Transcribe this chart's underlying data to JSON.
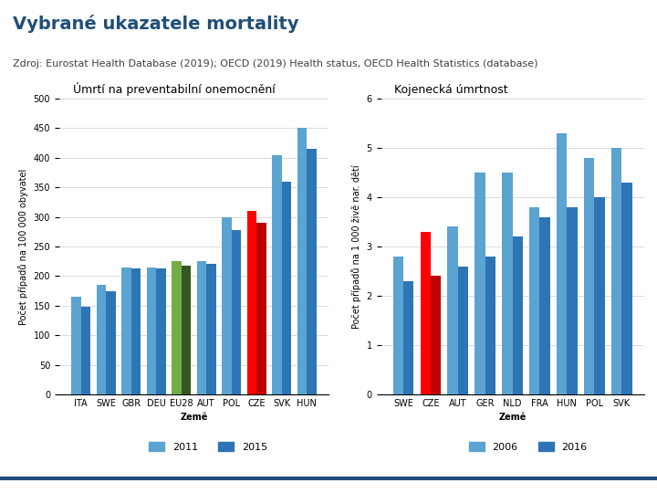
{
  "title": "Vybrané ukazatele mortality",
  "subtitle": "Zdroj: Eurostat Health Database (2019); OECD (2019) Health status, OECD Health Statistics (database)",
  "chart1": {
    "title": "Úmrtí na preventabilní onemocnění",
    "ylabel": "Počet případů na 100 000 obyvatel",
    "xlabel": "Země",
    "categories": [
      "ITA",
      "SWE",
      "GBR",
      "DEU",
      "EU28",
      "AUT",
      "POL",
      "CZE",
      "SVK",
      "HUN"
    ],
    "values_2011": [
      165,
      185,
      215,
      215,
      225,
      225,
      300,
      310,
      405,
      450
    ],
    "values_2015": [
      148,
      175,
      213,
      213,
      218,
      220,
      278,
      290,
      360,
      415
    ],
    "colors_2011": [
      "#5BA3D0",
      "#5BA3D0",
      "#5BA3D0",
      "#5BA3D0",
      "#70AD47",
      "#5BA3D0",
      "#5BA3D0",
      "#FF0000",
      "#5BA3D0",
      "#5BA3D0"
    ],
    "colors_2015": [
      "#2E75B6",
      "#2E75B6",
      "#2E75B6",
      "#2E75B6",
      "#375623",
      "#2E75B6",
      "#2E75B6",
      "#C00000",
      "#2E75B6",
      "#2E75B6"
    ],
    "legend_2011": "2011",
    "legend_2015": "2015",
    "ylim": [
      0,
      500
    ],
    "yticks": [
      0,
      50,
      100,
      150,
      200,
      250,
      300,
      350,
      400,
      450,
      500
    ]
  },
  "chart2": {
    "title": "Kojenecká úmrtnost",
    "ylabel": "Počet případů na 1 000 živě nar. dětí",
    "xlabel": "Země",
    "categories": [
      "SWE",
      "CZE",
      "AUT",
      "GER",
      "NLD",
      "FRA",
      "HUN",
      "POL",
      "SVK"
    ],
    "values_2006": [
      2.8,
      3.3,
      3.4,
      4.5,
      4.5,
      3.8,
      5.3,
      4.8,
      5.0
    ],
    "values_2016": [
      2.3,
      2.4,
      2.6,
      2.8,
      3.2,
      3.6,
      3.8,
      4.0,
      4.3
    ],
    "colors_2006": [
      "#5BA3D0",
      "#FF0000",
      "#5BA3D0",
      "#5BA3D0",
      "#5BA3D0",
      "#5BA3D0",
      "#5BA3D0",
      "#5BA3D0",
      "#5BA3D0"
    ],
    "colors_2016": [
      "#2E75B6",
      "#C00000",
      "#2E75B6",
      "#2E75B6",
      "#2E75B6",
      "#2E75B6",
      "#2E75B6",
      "#2E75B6",
      "#2E75B6"
    ],
    "legend_2006": "2006",
    "legend_2016": "2016",
    "ylim": [
      0,
      6
    ],
    "yticks": [
      0,
      1,
      2,
      3,
      4,
      5,
      6
    ]
  },
  "title_color": "#1F4E79",
  "subtitle_color": "#404040",
  "title_fontsize": 14,
  "subtitle_fontsize": 8,
  "axis_label_fontsize": 7,
  "tick_fontsize": 7,
  "legend_fontsize": 8,
  "bar_chart_title_fontsize": 9,
  "background_color": "#FFFFFF",
  "bottom_line_color": "#1F4E79",
  "light_blue": "#5BA3D0",
  "dark_blue": "#2E75B6"
}
